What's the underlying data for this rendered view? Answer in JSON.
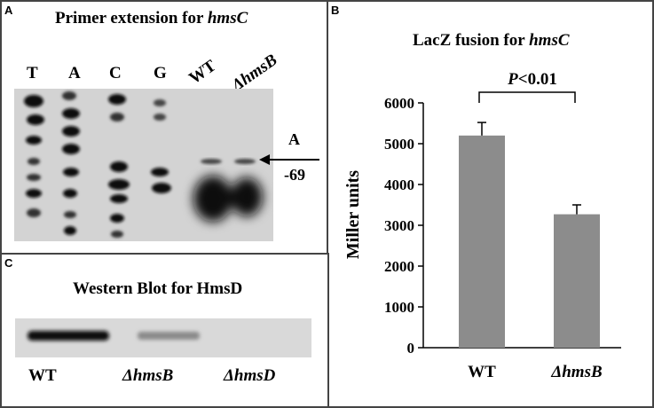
{
  "panelA": {
    "label": "A",
    "title_prefix": "Primer extension  for ",
    "title_gene": "hmsC",
    "lanes": [
      "T",
      "A",
      "C",
      "G",
      "WT"
    ],
    "lane_mutant_prefix": "Δ",
    "lane_mutant_gene": "hmsB",
    "arrow_base": "A",
    "arrow_position": "-69"
  },
  "panelB": {
    "label": "B",
    "title_prefix": "LacZ fusion for ",
    "title_gene": "hmsC",
    "significance_italic": "P",
    "significance_rest": "<0.01",
    "chart_data": {
      "type": "bar",
      "categories": [
        "WT",
        "ΔhmsB"
      ],
      "values": [
        5200,
        3270
      ],
      "error": [
        320,
        230
      ],
      "ylabel": "Miller units",
      "ylim": [
        0,
        6000
      ],
      "yticks": [
        0,
        1000,
        2000,
        3000,
        4000,
        5000,
        6000
      ],
      "bar_color": "#8c8c8c",
      "grid": false
    }
  },
  "panelC": {
    "label": "C",
    "title": "Western Blot  for HmsD",
    "lanes": [
      "WT",
      "ΔhmsB",
      "ΔhmsD"
    ]
  }
}
